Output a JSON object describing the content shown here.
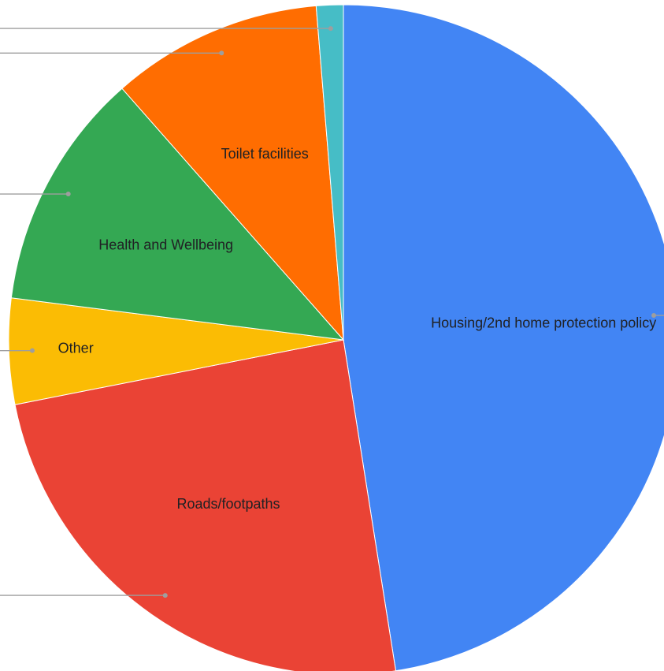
{
  "chart_data": {
    "type": "pie",
    "slices": [
      {
        "label": "Housing/2nd home protection policy",
        "value": 47.5,
        "color": "#4285f4",
        "show_label": true
      },
      {
        "label": "Roads/footpaths",
        "value": 24.4,
        "color": "#ea4335",
        "show_label": true
      },
      {
        "label": "Other",
        "value": 5.1,
        "color": "#fbbc04",
        "show_label": true
      },
      {
        "label": "Health and Wellbeing",
        "value": 11.5,
        "color": "#34a853",
        "show_label": true
      },
      {
        "label": "Toilet facilities",
        "value": 10.2,
        "color": "#ff6d01",
        "show_label": true
      },
      {
        "label": "",
        "value": 1.3,
        "color": "#46bdc6",
        "show_label": false
      }
    ]
  }
}
